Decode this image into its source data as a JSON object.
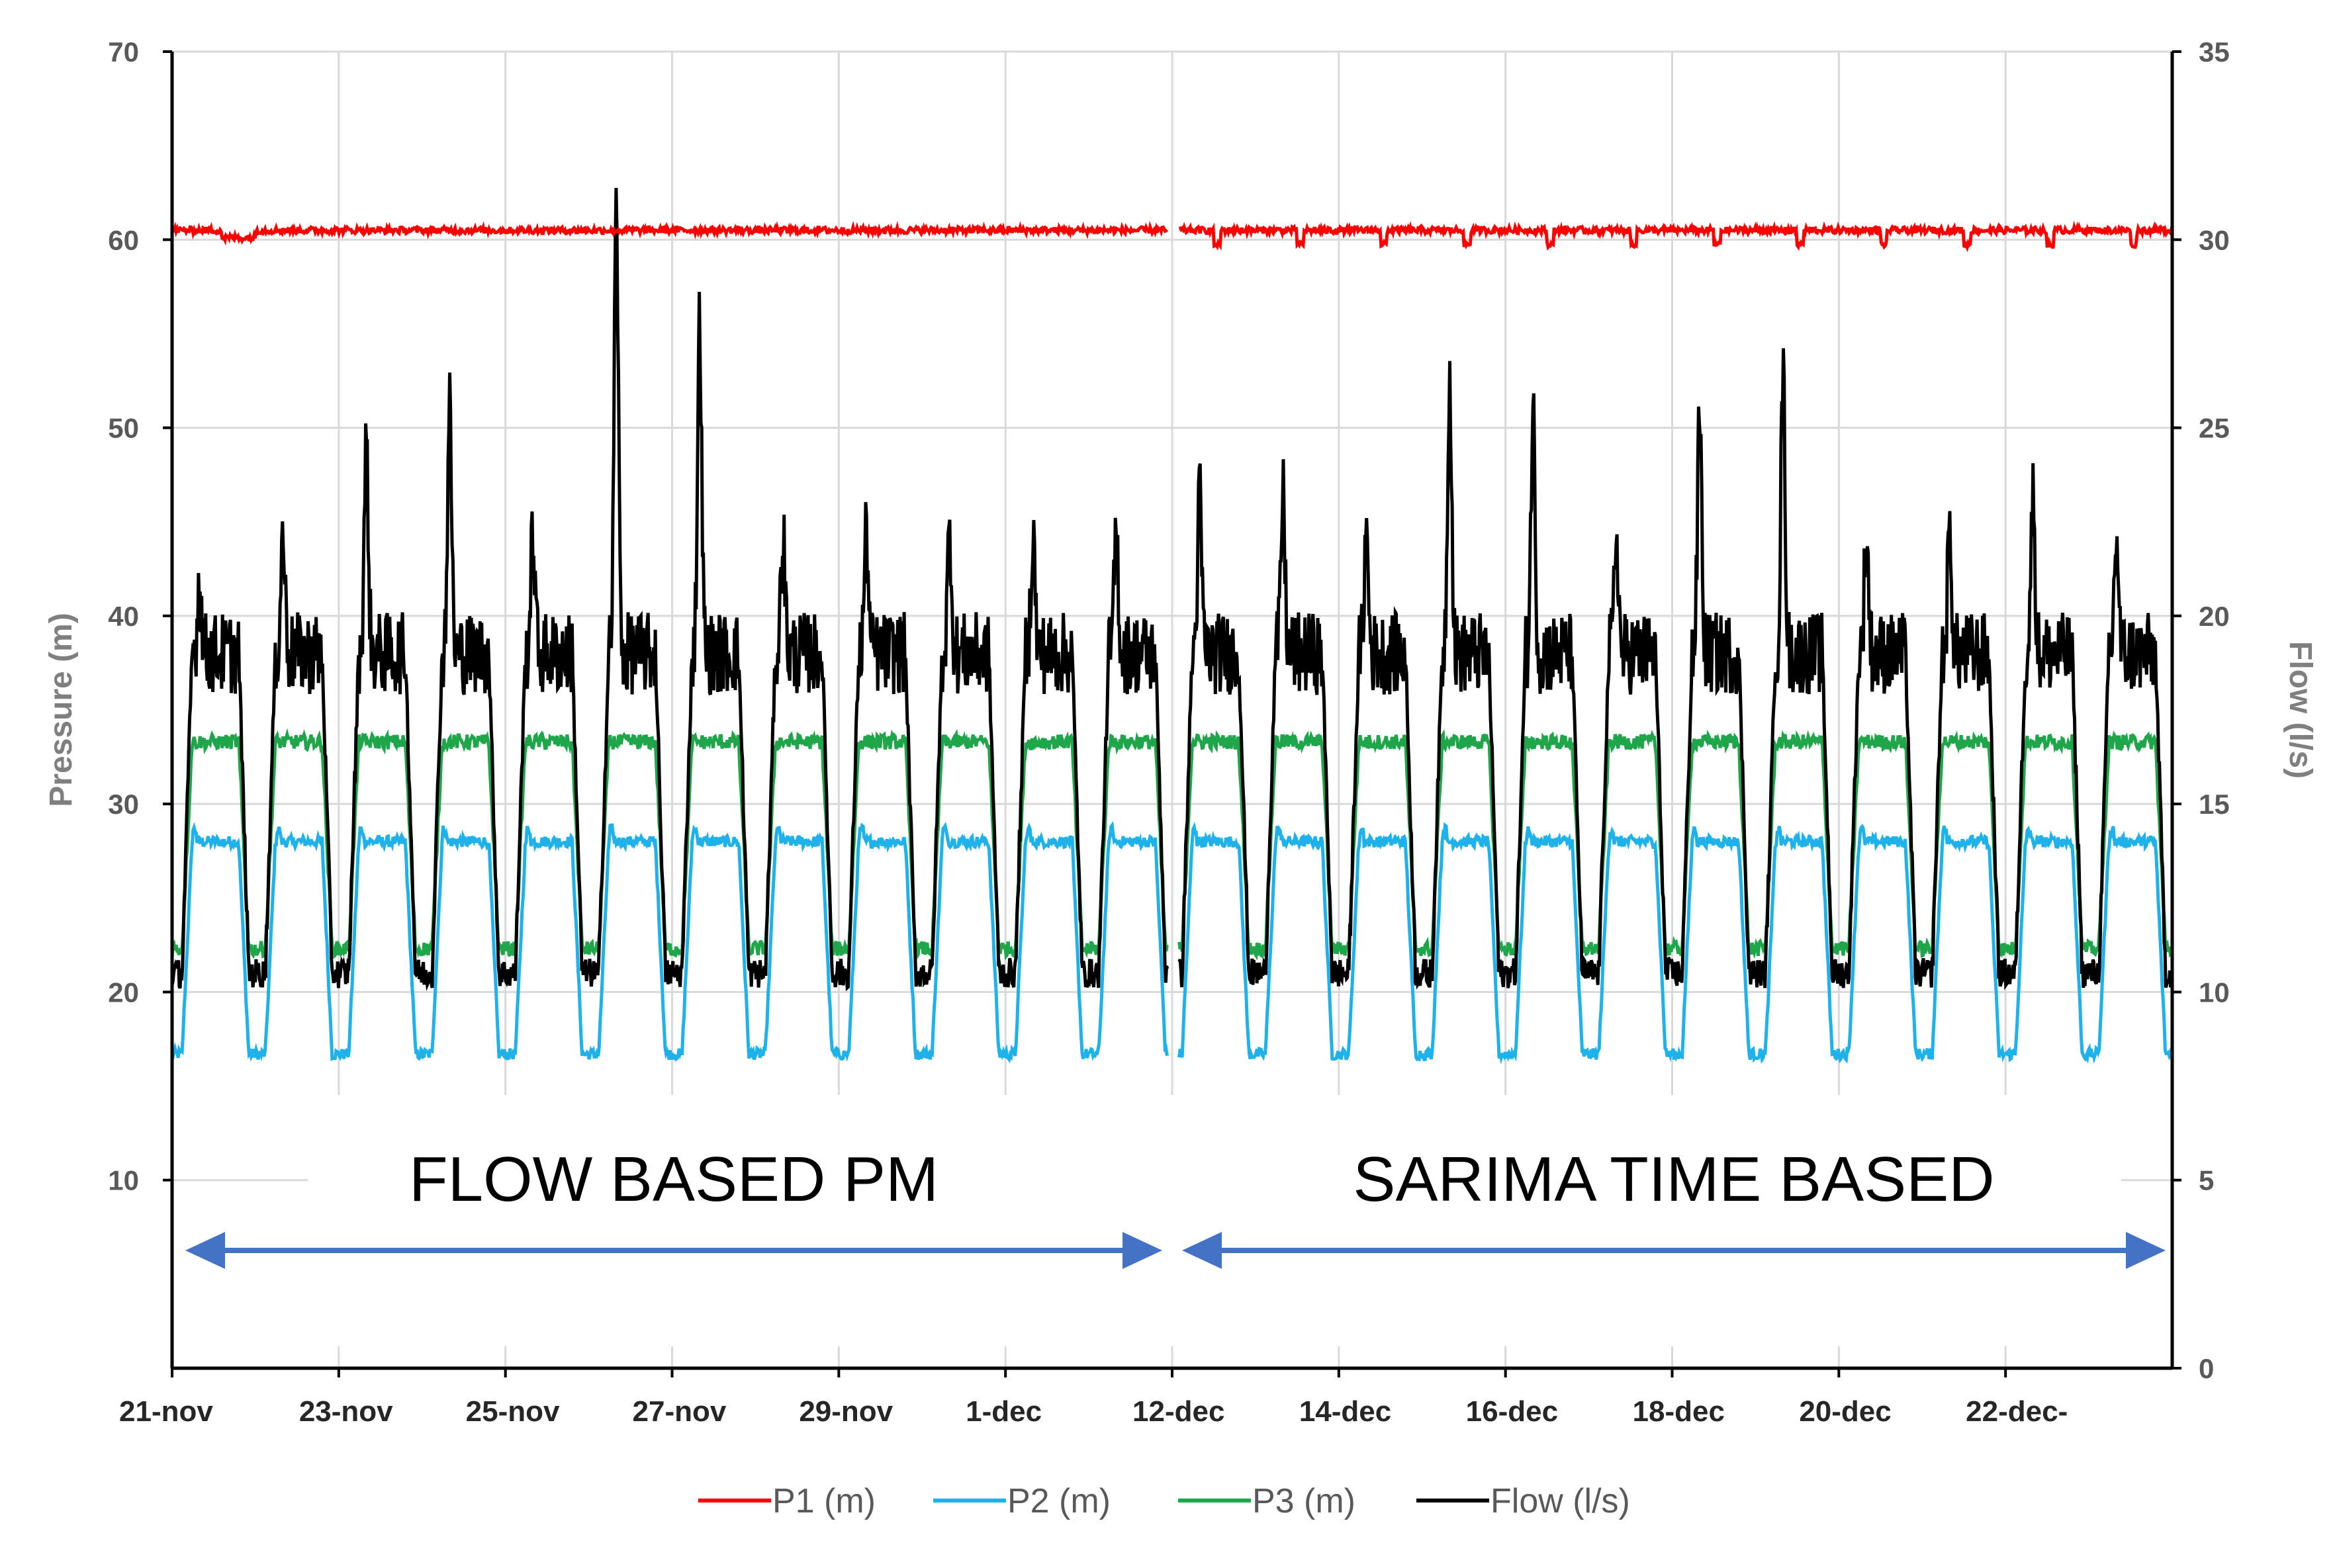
{
  "chart_data": {
    "type": "line",
    "title": "",
    "ylabel": "Pressure (m)",
    "y2label": "Flow (l/s)",
    "ylim": [
      0,
      70
    ],
    "y2lim": [
      0,
      35
    ],
    "yticks": [
      "10",
      "20",
      "30",
      "40",
      "50",
      "60",
      "70"
    ],
    "y2ticks": [
      "0",
      "5",
      "10",
      "15",
      "20",
      "25",
      "30",
      "35"
    ],
    "xticks": [
      "21-nov",
      "23-nov",
      "25-nov",
      "27-nov",
      "29-nov",
      "1-dec",
      "12-dec",
      "14-dec",
      "16-dec",
      "18-dec",
      "20-dec",
      "22-dec-"
    ],
    "grid": true,
    "legend_position": "bottom",
    "colors": {
      "p1": "#ff0000",
      "p2": "#1fb2ea",
      "p3": "#1fa64a",
      "flow": "#000000",
      "arrow": "#4472c4"
    },
    "series": [
      {
        "key": "p1",
        "name": "P1 (m)",
        "axis": "left",
        "base_value": 60.5,
        "dip_value": 59.6,
        "approx": "nearly constant ~60.5 m"
      },
      {
        "key": "p2",
        "name": "P2  (m)",
        "axis": "left",
        "day_value": 28,
        "night_value": 16.7,
        "approx": "daily cycle, ~28 m by day, ~16.7 m at night"
      },
      {
        "key": "p3",
        "name": "P3 (m)",
        "axis": "left",
        "day_value": 33.3,
        "night_value": 22.3,
        "approx": "daily cycle, ~33 m by day, ~22 m at night"
      },
      {
        "key": "flow",
        "name": "Flow (l/s)",
        "axis": "right",
        "night_value": 10.5,
        "typical_day_value": 19,
        "approx": "daily cycle with peaks",
        "daily_peaks": [
          21,
          22.2,
          24.5,
          25.5,
          22.2,
          31,
          27.8,
          22.2,
          22.2,
          22.2,
          22.2,
          22.2,
          23.2,
          23.2,
          22.2,
          26.5,
          25.5,
          22.2,
          25.5,
          26.5,
          22.2,
          22.2,
          23.2,
          22.2
        ]
      }
    ],
    "annotations": [
      {
        "text": "FLOW BASED PM",
        "span": [
          "21-nov",
          "12-dec"
        ]
      },
      {
        "text": "SARIMA TIME BASED",
        "span": [
          "12-dec",
          "22-dec-"
        ]
      }
    ]
  }
}
